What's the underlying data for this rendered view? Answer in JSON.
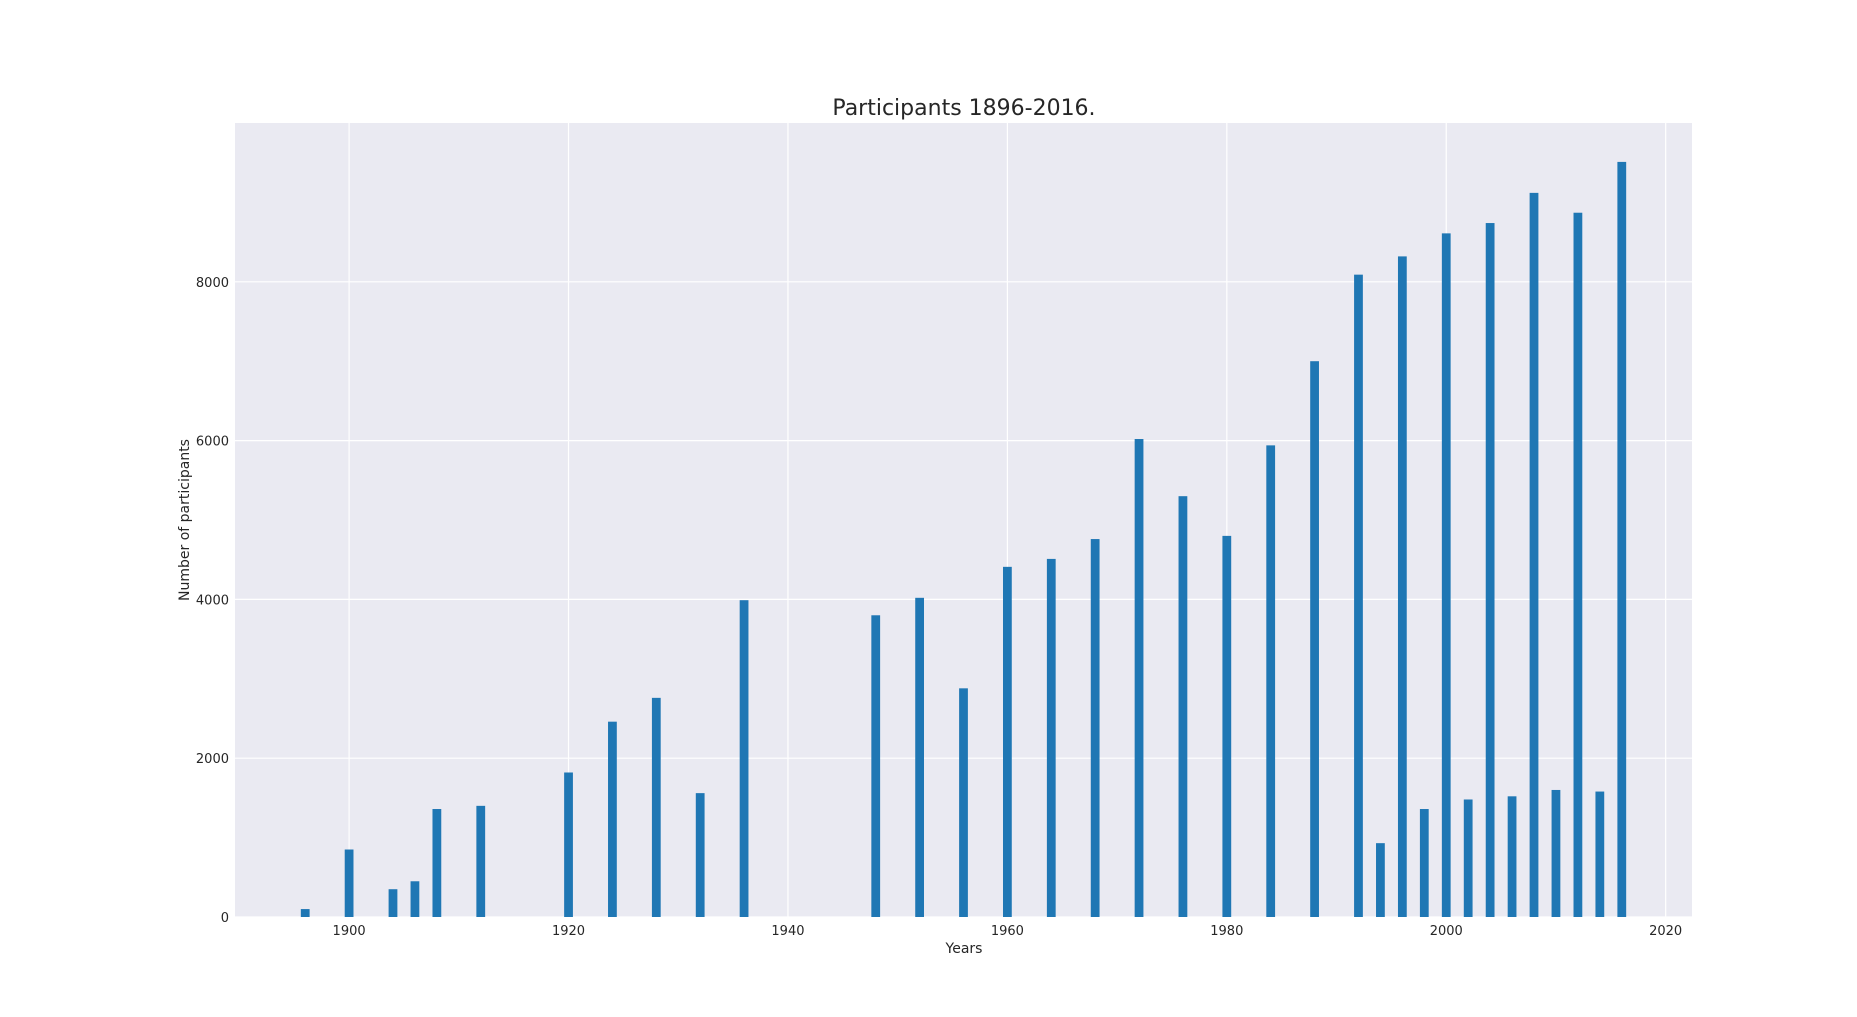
{
  "chart_data": {
    "type": "bar",
    "title": "Participants 1896-2016.",
    "xlabel": "Years",
    "ylabel": "Number of participants",
    "xlim": [
      1889.6,
      2022.4
    ],
    "ylim": [
      0,
      10000
    ],
    "x_ticks": [
      1900,
      1920,
      1940,
      1960,
      1980,
      2000,
      2020
    ],
    "y_ticks": [
      0,
      2000,
      4000,
      6000,
      8000
    ],
    "bar_width_years": 0.8,
    "grid": true,
    "colors": {
      "bar": "#1f77b4",
      "plot_background": "#eaeaf2",
      "grid": "#ffffff"
    },
    "x": [
      1896,
      1900,
      1904,
      1906,
      1908,
      1912,
      1920,
      1924,
      1928,
      1932,
      1936,
      1948,
      1952,
      1956,
      1960,
      1964,
      1968,
      1972,
      1976,
      1980,
      1984,
      1988,
      1992,
      1994,
      1996,
      1998,
      2000,
      2002,
      2004,
      2006,
      2008,
      2010,
      2012,
      2014,
      2016
    ],
    "values": [
      100,
      850,
      350,
      450,
      1360,
      1400,
      1820,
      2460,
      2760,
      1560,
      3990,
      3800,
      4020,
      2880,
      4410,
      4510,
      4760,
      6020,
      5300,
      4800,
      5940,
      7000,
      8090,
      930,
      8320,
      1360,
      8610,
      1480,
      8740,
      1520,
      9120,
      1600,
      8870,
      1580,
      9510
    ]
  }
}
